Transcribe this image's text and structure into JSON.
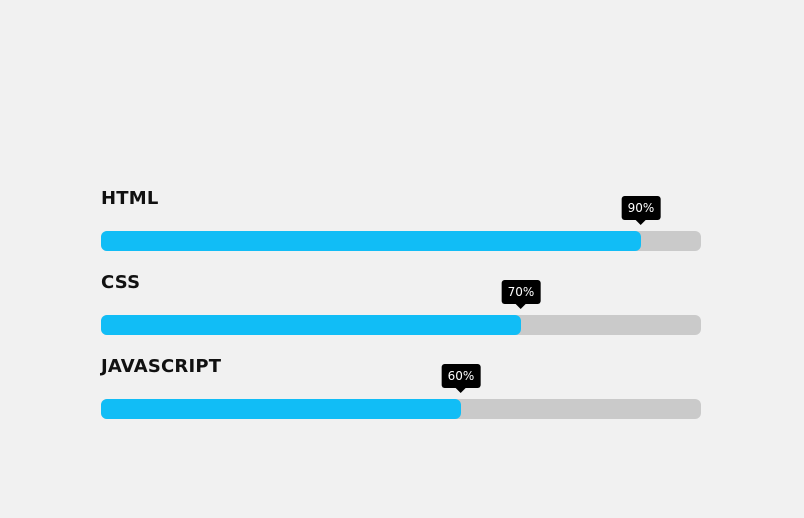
{
  "skills": [
    {
      "label": "HTML",
      "percent_text": "90%",
      "value": 0.9
    },
    {
      "label": "CSS",
      "percent_text": "70%",
      "value": 0.7
    },
    {
      "label": "JAVASCRIPT",
      "percent_text": "60%",
      "value": 0.6
    }
  ],
  "colors": {
    "background": "#f1f1f1",
    "fill": "#11bdf6",
    "track": "#cacaca",
    "tooltip": "#000000",
    "tooltip_text": "#ffffff",
    "label": "#111111"
  }
}
